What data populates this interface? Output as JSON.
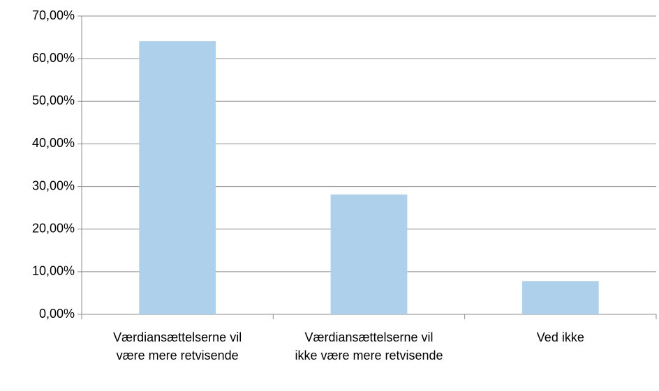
{
  "chart_data": {
    "type": "bar",
    "categories": [
      "Værdiansættelserne vil være mere retvisende",
      "Værdiansættelserne vil ikke være mere retvisende",
      "Ved ikke"
    ],
    "values": [
      64.1,
      28.1,
      7.8
    ],
    "color": "#afd0ea",
    "ylim": [
      0,
      70
    ],
    "yticks": [
      {
        "value": 0,
        "label": "0,00%"
      },
      {
        "value": 10,
        "label": "10,00%"
      },
      {
        "value": 20,
        "label": "20,00%"
      },
      {
        "value": 30,
        "label": "30,00%"
      },
      {
        "value": 40,
        "label": "40,00%"
      },
      {
        "value": 50,
        "label": "50,00%"
      },
      {
        "value": 60,
        "label": "60,00%"
      },
      {
        "value": 70,
        "label": "70,00%"
      }
    ],
    "grid": true
  }
}
